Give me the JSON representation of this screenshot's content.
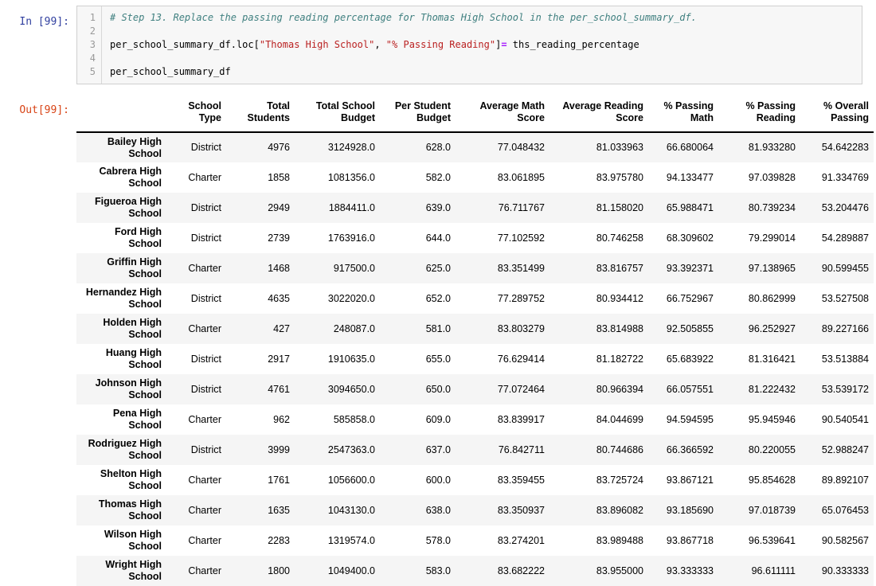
{
  "notebook": {
    "in_prompt": "In [99]:",
    "out_prompt": "Out[99]:",
    "code_lines": [
      {
        "num": "1",
        "segments": [
          {
            "t": "# Step 13. Replace the passing reading percentage for Thomas High School in the per_school_summary_df.",
            "c": "comment"
          }
        ]
      },
      {
        "num": "2",
        "segments": []
      },
      {
        "num": "3",
        "segments": [
          {
            "t": "per_school_summary_df.loc[",
            "c": "plain"
          },
          {
            "t": "\"Thomas High School\"",
            "c": "string"
          },
          {
            "t": ", ",
            "c": "plain"
          },
          {
            "t": "\"% Passing Reading\"",
            "c": "string"
          },
          {
            "t": "]",
            "c": "plain"
          },
          {
            "t": "=",
            "c": "operator"
          },
          {
            "t": " ths_reading_percentage",
            "c": "plain"
          }
        ]
      },
      {
        "num": "4",
        "segments": []
      },
      {
        "num": "5",
        "segments": [
          {
            "t": "per_school_summary_df",
            "c": "plain"
          }
        ]
      }
    ]
  },
  "table": {
    "index_header": "",
    "columns": [
      "School Type",
      "Total Students",
      "Total School Budget",
      "Per Student Budget",
      "Average Math Score",
      "Average Reading Score",
      "% Passing Math",
      "% Passing Reading",
      "% Overall Passing"
    ],
    "rows": [
      {
        "index": "Bailey High School",
        "cells": [
          "District",
          "4976",
          "3124928.0",
          "628.0",
          "77.048432",
          "81.033963",
          "66.680064",
          "81.933280",
          "54.642283"
        ]
      },
      {
        "index": "Cabrera High School",
        "cells": [
          "Charter",
          "1858",
          "1081356.0",
          "582.0",
          "83.061895",
          "83.975780",
          "94.133477",
          "97.039828",
          "91.334769"
        ]
      },
      {
        "index": "Figueroa High School",
        "cells": [
          "District",
          "2949",
          "1884411.0",
          "639.0",
          "76.711767",
          "81.158020",
          "65.988471",
          "80.739234",
          "53.204476"
        ]
      },
      {
        "index": "Ford High School",
        "cells": [
          "District",
          "2739",
          "1763916.0",
          "644.0",
          "77.102592",
          "80.746258",
          "68.309602",
          "79.299014",
          "54.289887"
        ]
      },
      {
        "index": "Griffin High School",
        "cells": [
          "Charter",
          "1468",
          "917500.0",
          "625.0",
          "83.351499",
          "83.816757",
          "93.392371",
          "97.138965",
          "90.599455"
        ]
      },
      {
        "index": "Hernandez High School",
        "cells": [
          "District",
          "4635",
          "3022020.0",
          "652.0",
          "77.289752",
          "80.934412",
          "66.752967",
          "80.862999",
          "53.527508"
        ]
      },
      {
        "index": "Holden High School",
        "cells": [
          "Charter",
          "427",
          "248087.0",
          "581.0",
          "83.803279",
          "83.814988",
          "92.505855",
          "96.252927",
          "89.227166"
        ]
      },
      {
        "index": "Huang High School",
        "cells": [
          "District",
          "2917",
          "1910635.0",
          "655.0",
          "76.629414",
          "81.182722",
          "65.683922",
          "81.316421",
          "53.513884"
        ]
      },
      {
        "index": "Johnson High School",
        "cells": [
          "District",
          "4761",
          "3094650.0",
          "650.0",
          "77.072464",
          "80.966394",
          "66.057551",
          "81.222432",
          "53.539172"
        ]
      },
      {
        "index": "Pena High School",
        "cells": [
          "Charter",
          "962",
          "585858.0",
          "609.0",
          "83.839917",
          "84.044699",
          "94.594595",
          "95.945946",
          "90.540541"
        ]
      },
      {
        "index": "Rodriguez High School",
        "cells": [
          "District",
          "3999",
          "2547363.0",
          "637.0",
          "76.842711",
          "80.744686",
          "66.366592",
          "80.220055",
          "52.988247"
        ]
      },
      {
        "index": "Shelton High School",
        "cells": [
          "Charter",
          "1761",
          "1056600.0",
          "600.0",
          "83.359455",
          "83.725724",
          "93.867121",
          "95.854628",
          "89.892107"
        ]
      },
      {
        "index": "Thomas High School",
        "cells": [
          "Charter",
          "1635",
          "1043130.0",
          "638.0",
          "83.350937",
          "83.896082",
          "93.185690",
          "97.018739",
          "65.076453"
        ]
      },
      {
        "index": "Wilson High School",
        "cells": [
          "Charter",
          "2283",
          "1319574.0",
          "578.0",
          "83.274201",
          "83.989488",
          "93.867718",
          "96.539641",
          "90.582567"
        ]
      },
      {
        "index": "Wright High School",
        "cells": [
          "Charter",
          "1800",
          "1049400.0",
          "583.0",
          "83.682222",
          "83.955000",
          "93.333333",
          "96.611111",
          "90.333333"
        ]
      }
    ]
  },
  "colors": {
    "in_prompt": "#303F9F",
    "out_prompt": "#D84315",
    "comment": "#408080",
    "string": "#BA2121",
    "operator": "#AA22FF",
    "row_stripe": "#f5f5f5",
    "cell_background": "#f7f7f7",
    "cell_border": "#cfcfcf"
  }
}
